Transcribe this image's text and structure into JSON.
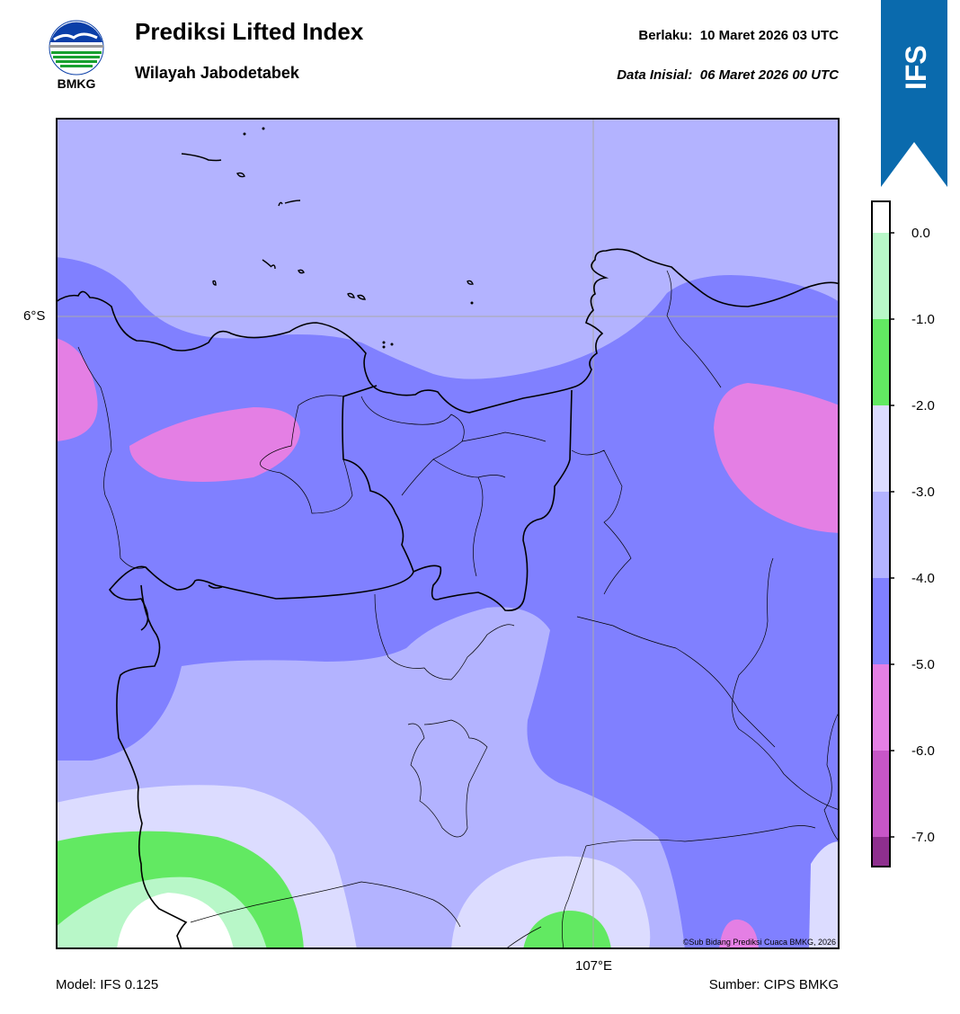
{
  "header": {
    "logo_text": "BMKG",
    "title": "Prediksi Lifted Index",
    "region": "Wilayah Jabodetabek",
    "valid_label": "Berlaku:",
    "valid_value": "10 Maret 2026 03 UTC",
    "initial_label": "Data Inisial:",
    "initial_value": "06 Maret 2026 00 UTC",
    "ribbon_text": "IFS"
  },
  "map": {
    "lat_label": "6°S",
    "lon_label": "107°E",
    "copyright": "©Sub Bidang Prediksi Cuaca BMKG, 2026"
  },
  "colorbar": {
    "ticks": [
      "0.0",
      "-1.0",
      "-2.0",
      "-3.0",
      "-4.0",
      "-5.0",
      "-6.0",
      "-7.0"
    ],
    "colors": {
      "gt_0": "#ffffff",
      "0_to_-1": "#b8f7c8",
      "-1_to_-2": "#62e962",
      "-2_to_-3": "#dcdcff",
      "-3_to_-4": "#b3b3ff",
      "-4_to_-5": "#8080ff",
      "-5_to_-6": "#e47fe4",
      "-6_to_-7": "#c756c7",
      "lt_-7": "#8e2f8e"
    }
  },
  "footer": {
    "model": "Model: IFS 0.125",
    "source": "Sumber: CIPS BMKG"
  }
}
